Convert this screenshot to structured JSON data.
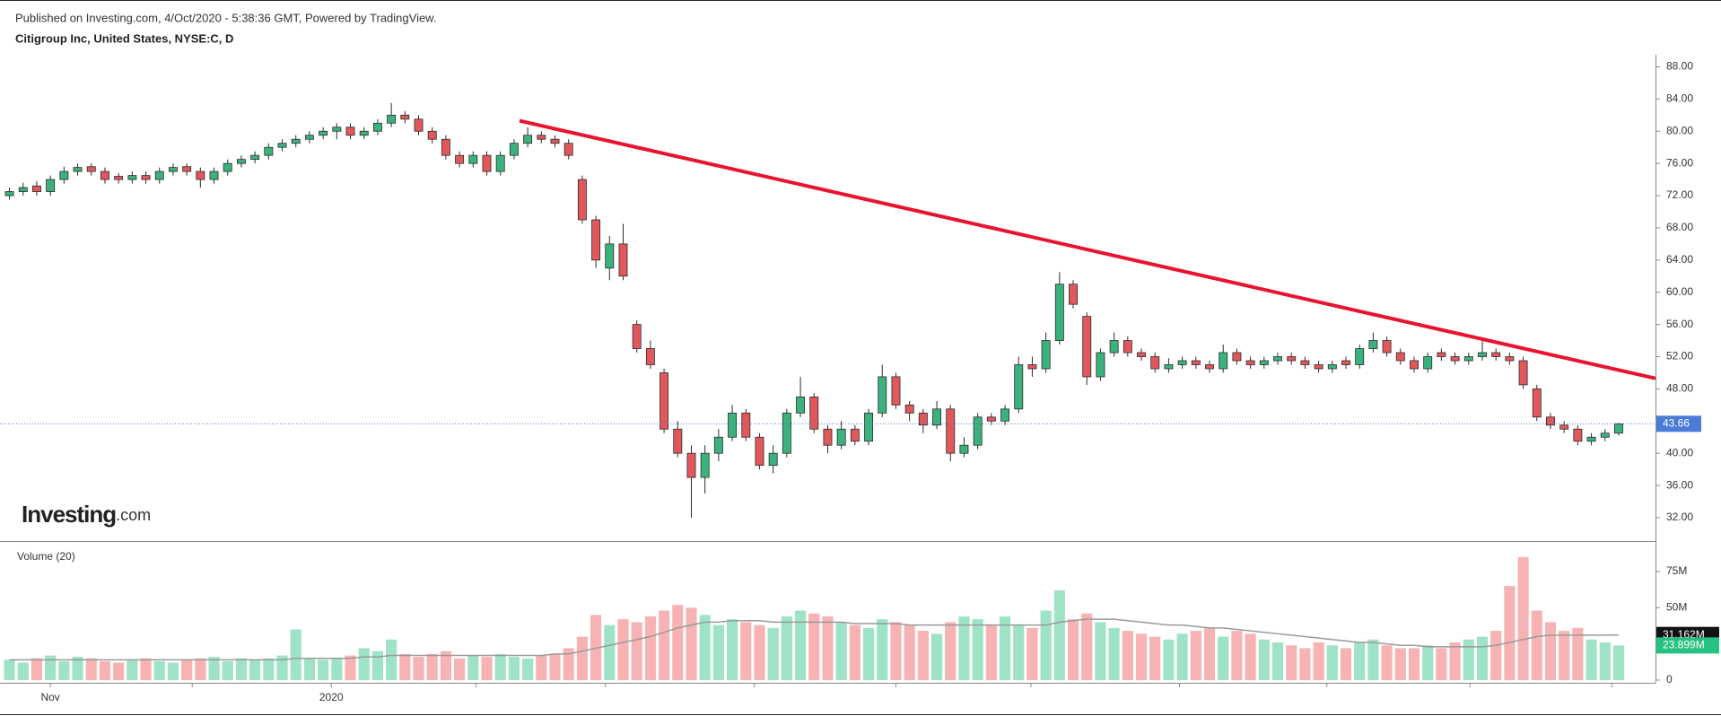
{
  "header": {
    "published": "Published on Investing.com, 4/Oct/2020 - 5:38:36 GMT, Powered by TradingView.",
    "symbol": "Citigroup Inc, United States, NYSE:C, D"
  },
  "logo": {
    "brand": "Investing",
    "suffix": ".com"
  },
  "chart_data": [
    {
      "type": "candlestick",
      "open": [
        72,
        72.5,
        73.2,
        72.5,
        74,
        75,
        75.6,
        75,
        74.4,
        74,
        74.5,
        74,
        75,
        75.6,
        75,
        74,
        75,
        76,
        76.5,
        77,
        78,
        78.5,
        79,
        79.5,
        80,
        80.5,
        79.5,
        80,
        81,
        82,
        81.5,
        80,
        79,
        77,
        76,
        77,
        75,
        77,
        78.5,
        79.5,
        79,
        78.5,
        74,
        69,
        63,
        66,
        56,
        53,
        50,
        43,
        40,
        37,
        40,
        42,
        45,
        42,
        38.5,
        40,
        45,
        47,
        43,
        41,
        43,
        41.5,
        45,
        49.5,
        46,
        45,
        43.5,
        45.5,
        40,
        41,
        44.5,
        44,
        45.5,
        51,
        50.5,
        54,
        61,
        57,
        49.5,
        52.5,
        54,
        52.5,
        52,
        50.5,
        51,
        51.5,
        51,
        50.5,
        52.5,
        51.5,
        51,
        51.5,
        52,
        51.5,
        51,
        50.5,
        51.5,
        51,
        53,
        54,
        52.5,
        51.5,
        50.5,
        52.5,
        52,
        51.5,
        52,
        52.5,
        52,
        51.5,
        48,
        44.5,
        43.5,
        43,
        41.5,
        42,
        42.5
      ],
      "high": [
        73,
        73.6,
        73.8,
        74.5,
        75.6,
        76,
        76,
        75.5,
        74.8,
        75,
        75,
        75.5,
        76,
        76,
        75.5,
        75.5,
        76.5,
        77,
        77.5,
        78.5,
        79,
        79.5,
        80,
        80.5,
        81,
        81,
        80.5,
        81.5,
        83.5,
        82.5,
        82,
        80.5,
        79.5,
        77.5,
        77.5,
        77.5,
        77.5,
        79,
        80.5,
        80,
        79.5,
        79,
        74.5,
        69.5,
        67,
        68.5,
        56.5,
        54,
        50.5,
        44,
        41,
        41,
        43,
        46,
        45.5,
        42.5,
        41,
        45.5,
        49.5,
        47.5,
        43.5,
        44,
        43.5,
        45.5,
        51,
        50,
        46.5,
        45.5,
        46.5,
        46,
        42,
        45,
        45,
        46,
        52,
        52,
        55,
        62.5,
        61.5,
        57.5,
        53,
        55,
        54.5,
        53,
        52.5,
        51.8,
        52,
        52,
        51.5,
        53.5,
        53,
        52,
        52,
        52.5,
        52.5,
        52,
        51.5,
        51.5,
        52,
        53.5,
        55,
        54.5,
        53,
        52,
        52.5,
        53,
        52.5,
        52.5,
        54,
        53,
        52.5,
        52,
        48.5,
        45,
        44,
        43.5,
        42.5,
        43,
        43.8
      ],
      "low": [
        71.5,
        72,
        72,
        72,
        73.5,
        74.5,
        74.5,
        73.5,
        73.5,
        73.5,
        73.5,
        73.5,
        74.5,
        74.5,
        73,
        73.5,
        74.5,
        75.5,
        76,
        76.5,
        77.5,
        78,
        78.5,
        79,
        79,
        79,
        79,
        79.5,
        80.5,
        81,
        79.5,
        78.5,
        76.5,
        75.5,
        75.5,
        74.5,
        74.5,
        76.5,
        78,
        78.5,
        78,
        76.5,
        68.5,
        63,
        61.5,
        61.5,
        52.5,
        50.5,
        42.5,
        39.5,
        32,
        35,
        39,
        41.5,
        41.5,
        38,
        37.5,
        39.5,
        44.5,
        42.5,
        40,
        40.5,
        41,
        41,
        44.5,
        45.5,
        44,
        42.5,
        43,
        39,
        39.5,
        40.5,
        43.5,
        43.5,
        45,
        49.5,
        50,
        53.5,
        58,
        48.5,
        49,
        52,
        52,
        51.5,
        50,
        50,
        50.5,
        50.5,
        50,
        50,
        51,
        50.5,
        50.5,
        51,
        51,
        50.5,
        50,
        50,
        50.5,
        50.5,
        52.5,
        52,
        51,
        50,
        50,
        51.5,
        51,
        51,
        51.5,
        51.5,
        51,
        48,
        44,
        43,
        42.5,
        41,
        41,
        41.5,
        42.2
      ],
      "close": [
        72.5,
        73,
        72.5,
        74,
        75,
        75.5,
        75,
        74,
        74,
        74.5,
        74,
        75,
        75.5,
        75,
        74,
        75,
        76,
        76.5,
        77,
        78,
        78.5,
        79,
        79.5,
        80,
        80.5,
        79.5,
        80,
        81,
        82,
        81.5,
        80,
        79,
        77,
        76,
        77,
        75,
        77,
        78.5,
        79.5,
        79,
        78.5,
        77,
        69,
        64,
        66,
        62,
        53,
        51,
        43,
        40,
        37,
        40,
        42,
        45,
        42,
        38.5,
        40,
        45,
        47,
        43,
        41,
        43,
        41.5,
        45,
        49.5,
        46,
        45,
        43.5,
        45.5,
        40,
        41,
        44.5,
        44,
        45.5,
        51,
        50.5,
        54,
        61,
        58.5,
        49.5,
        52.5,
        54,
        52.5,
        52,
        50.5,
        51,
        51.5,
        51,
        50.5,
        52.5,
        51.5,
        51,
        51.5,
        52,
        51.5,
        51,
        50.5,
        51,
        51,
        53,
        54,
        52.5,
        51.5,
        50.5,
        52,
        52,
        51.5,
        52,
        52.5,
        52,
        51.5,
        48.5,
        44.5,
        43.5,
        43,
        41.5,
        42,
        42.5,
        43.66
      ],
      "up_color": "#3bb27d",
      "down_color": "#e0585b",
      "xlim": [
        -0.3,
        120.7
      ],
      "xticks": [
        {
          "value": 3.0,
          "label": "Nov"
        },
        13.4,
        {
          "value": 23.6,
          "label": "2020"
        },
        34.2,
        43.7,
        54.6,
        65.0,
        74.9,
        85.8,
        96.6,
        107.1,
        117.5
      ],
      "ylim": [
        29.1,
        89.5
      ],
      "yticks": [
        {
          "value": 32,
          "label": "32.00"
        },
        {
          "value": 36,
          "label": "36.00"
        },
        {
          "value": 40,
          "label": "40.00"
        },
        {
          "value": 44,
          "label": "44.00"
        },
        {
          "value": 48,
          "label": "48.00"
        },
        {
          "value": 52,
          "label": "52.00"
        },
        {
          "value": 56,
          "label": "56.00"
        },
        {
          "value": 60,
          "label": "60.00"
        },
        {
          "value": 64,
          "label": "64.00"
        },
        {
          "value": 68,
          "label": "68.00"
        },
        {
          "value": 72,
          "label": "72.00"
        },
        {
          "value": 76,
          "label": "76.00"
        },
        {
          "value": 80,
          "label": "80.00"
        },
        {
          "value": 84,
          "label": "84.00"
        },
        {
          "value": 88,
          "label": "88.00"
        }
      ],
      "last_price": 43.66,
      "last_price_color": "#4a7bd6",
      "trendline": {
        "x": [
          37.4,
          120.7
        ],
        "y": [
          81.3,
          49.3
        ],
        "color": "#e8142f"
      }
    },
    {
      "type": "bar",
      "title": "Volume (20)",
      "values": [
        14,
        12,
        15,
        17,
        13,
        16,
        15,
        13,
        12,
        14,
        15,
        13,
        12,
        14,
        15,
        16,
        13,
        15,
        14,
        15,
        17,
        35,
        15,
        14,
        15,
        17,
        22,
        20,
        28,
        18,
        16,
        18,
        20,
        15,
        17,
        16,
        18,
        16,
        15,
        17,
        18,
        22,
        30,
        45,
        38,
        42,
        40,
        44,
        48,
        52,
        50,
        45,
        38,
        42,
        40,
        38,
        36,
        44,
        48,
        46,
        44,
        40,
        38,
        36,
        42,
        40,
        38,
        34,
        32,
        40,
        44,
        42,
        38,
        44,
        38,
        36,
        48,
        62,
        42,
        46,
        40,
        36,
        34,
        32,
        30,
        28,
        32,
        34,
        36,
        30,
        34,
        32,
        28,
        26,
        24,
        22,
        26,
        24,
        22,
        26,
        28,
        24,
        22,
        22,
        24,
        22,
        26,
        28,
        30,
        34,
        65,
        85,
        48,
        40,
        34,
        36,
        28,
        26,
        23.899
      ],
      "up_color": "#9fe3c6",
      "down_color": "#f7b3b3",
      "ma": {
        "name": "Volume (20)",
        "color": "#9a9a9a",
        "values": [
          14,
          14,
          14,
          14,
          14,
          14,
          14,
          14,
          14,
          14,
          14,
          14,
          14,
          14,
          14,
          14,
          14,
          14,
          14,
          14,
          14,
          15,
          15,
          15,
          15,
          15,
          16,
          16,
          17,
          17,
          17,
          17,
          17,
          17,
          17,
          17,
          17,
          17,
          17,
          17,
          18,
          18,
          20,
          22,
          24,
          26,
          28,
          30,
          33,
          36,
          38,
          40,
          40,
          41,
          41,
          41,
          40,
          40,
          40,
          40,
          40,
          40,
          39,
          39,
          39,
          39,
          38,
          38,
          38,
          38,
          38,
          38,
          38,
          38,
          38,
          38,
          38,
          40,
          41,
          42,
          42,
          42,
          41,
          40,
          39,
          38,
          38,
          37,
          36,
          36,
          35,
          34,
          33,
          32,
          31,
          30,
          29,
          28,
          27,
          26,
          26,
          25,
          24,
          24,
          23,
          23,
          23,
          23,
          23,
          24,
          26,
          28,
          30,
          31,
          31,
          31,
          31,
          31,
          31.162
        ]
      },
      "last_value_label": "23.899M",
      "ma_last_label": "31.162M",
      "ylim": [
        -1.9,
        94.8
      ],
      "yticks": [
        0,
        {
          "value": 50,
          "label": "50M"
        },
        {
          "value": 75,
          "label": "75M"
        }
      ]
    }
  ]
}
